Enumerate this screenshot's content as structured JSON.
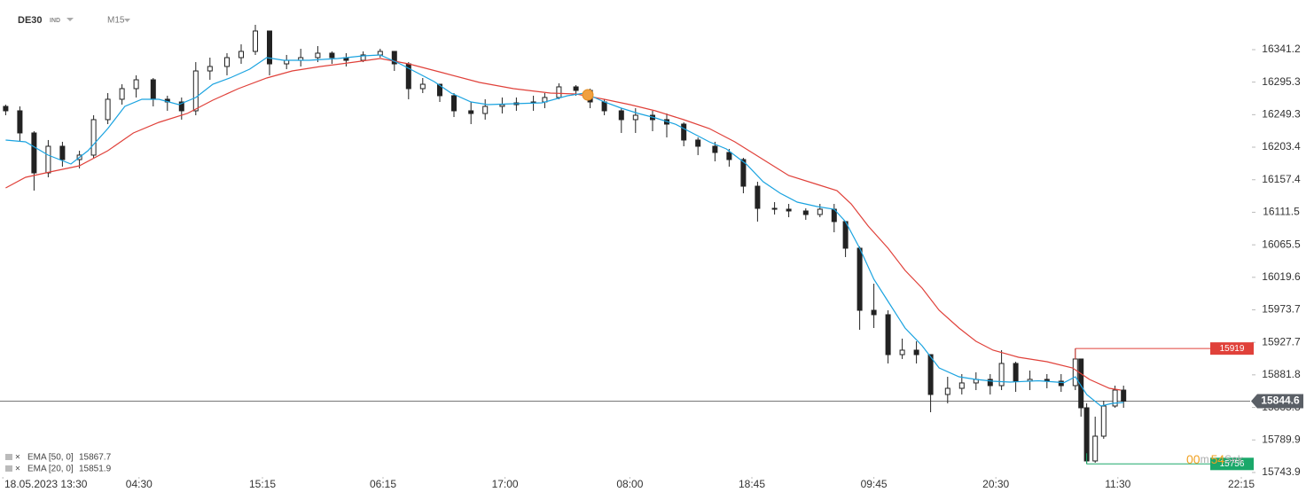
{
  "chart_data": {
    "type": "candlestick",
    "symbol": "DE30",
    "instrument_type": "IND",
    "timeframe": "M15",
    "x": [
      2,
      7,
      12,
      17,
      22,
      28,
      33,
      38,
      43,
      48,
      54,
      59,
      64,
      69,
      74,
      80,
      85,
      90,
      95,
      101,
      106,
      112,
      117,
      122,
      128,
      134,
      139,
      144,
      149,
      155,
      160,
      166,
      171,
      177,
      182,
      188,
      192,
      197,
      203,
      208,
      213,
      219,
      224,
      230,
      235,
      241,
      246,
      252,
      257,
      262,
      267,
      273,
      278,
      284,
      289,
      294,
      298,
      303,
      308,
      313,
      318,
      323,
      328,
      334,
      339,
      344,
      349,
      353,
      358,
      363,
      369,
      374,
      379,
      381,
      383,
      386,
      389,
      393,
      396
    ],
    "open": [
      16261.0,
      16254.8,
      16223.5,
      16167.1,
      16204.7,
      16185.9,
      16192.2,
      16242.3,
      16271.1,
      16286.1,
      16298.6,
      16271.1,
      16267.3,
      16254.8,
      16311.1,
      16317.4,
      16329.9,
      16338.7,
      16367.5,
      16321.1,
      16326.1,
      16329.9,
      16336.2,
      16329.9,
      16326.1,
      16333.7,
      16338.7,
      16321.1,
      16286.1,
      16292.3,
      16276.1,
      16254.8,
      16251.0,
      16261.0,
      16263.5,
      16266.0,
      16267.3,
      16273.6,
      16288.6,
      16283.6,
      16267.3,
      16254.8,
      16242.3,
      16248.5,
      16242.3,
      16236.0,
      16213.5,
      16204.7,
      16195.9,
      16185.9,
      16148.3,
      16117.0,
      16115.8,
      16113.3,
      16108.3,
      16115.8,
      16098.3,
      16060.7,
      15973.0,
      15966.8,
      15910.4,
      15916.7,
      15910.4,
      15854.1,
      15862.8,
      15870.4,
      15875.4,
      15866.6,
      15897.9,
      15872.9,
      15875.4,
      15872.9,
      15866.6,
      15904.2,
      15835.3,
      15760.2,
      15795.2,
      15837.8,
      15860.3
    ],
    "high": [
      16263.5,
      16261.0,
      16226.0,
      16213.5,
      16211.0,
      16198.4,
      16248.5,
      16279.8,
      16292.3,
      16304.9,
      16301.1,
      16276.1,
      16273.6,
      16323.6,
      16329.9,
      16336.2,
      16348.7,
      16376.2,
      16367.5,
      16333.7,
      16342.4,
      16346.2,
      16338.7,
      16336.2,
      16338.7,
      16342.4,
      16338.7,
      16323.6,
      16301.1,
      16292.3,
      16279.8,
      16267.3,
      16271.1,
      16273.6,
      16273.6,
      16276.1,
      16279.8,
      16293.6,
      16291.1,
      16286.1,
      16271.1,
      16258.5,
      16258.5,
      16254.8,
      16251.0,
      16238.5,
      16217.2,
      16211.0,
      16200.9,
      16188.4,
      16154.6,
      16125.8,
      16123.3,
      16117.0,
      16123.3,
      16123.3,
      16098.3,
      16063.2,
      16010.6,
      15973.0,
      15933.0,
      15929.2,
      15910.4,
      15879.1,
      15882.9,
      15885.4,
      15882.9,
      15916.7,
      15900.4,
      15887.9,
      15882.9,
      15882.9,
      15919.0,
      15904.2,
      15841.6,
      15822.8,
      15845.3,
      15866.6,
      15866.6
    ],
    "low": [
      16248.5,
      16211.0,
      16142.1,
      16160.9,
      16175.9,
      16173.4,
      16188.4,
      16236.0,
      16263.5,
      16273.6,
      16261.0,
      16254.8,
      16242.3,
      16248.5,
      16298.6,
      16304.9,
      16321.1,
      16333.7,
      16304.9,
      16313.6,
      16317.4,
      16323.6,
      16321.1,
      16317.4,
      16323.6,
      16329.9,
      16311.1,
      16271.1,
      16279.8,
      16267.3,
      16246.0,
      16236.0,
      16242.3,
      16251.0,
      16254.8,
      16254.8,
      16258.5,
      16271.1,
      16276.1,
      16258.5,
      16248.5,
      16223.5,
      16223.5,
      16226.0,
      16217.2,
      16204.7,
      16192.2,
      16183.4,
      16175.9,
      16138.3,
      16098.3,
      16108.3,
      16104.5,
      16100.8,
      16104.5,
      16083.2,
      16048.2,
      15945.5,
      15948.0,
      15897.9,
      15904.2,
      15897.9,
      15829.0,
      15841.6,
      15854.1,
      15860.3,
      15854.1,
      15860.3,
      15857.8,
      15860.3,
      15862.8,
      15857.8,
      15860.3,
      15822.8,
      15756.0,
      15757.7,
      15791.5,
      15835.3,
      15835.3
    ],
    "close": [
      16254.8,
      16223.5,
      16167.1,
      16204.7,
      16185.9,
      16192.2,
      16242.3,
      16271.1,
      16286.1,
      16298.6,
      16271.1,
      16267.3,
      16254.8,
      16311.1,
      16317.4,
      16329.9,
      16338.7,
      16367.5,
      16321.1,
      16326.1,
      16329.9,
      16336.2,
      16329.9,
      16326.1,
      16333.7,
      16338.7,
      16321.1,
      16286.1,
      16292.3,
      16276.1,
      16254.8,
      16251.0,
      16261.0,
      16263.5,
      16266.0,
      16267.3,
      16273.6,
      16288.6,
      16283.6,
      16267.3,
      16254.8,
      16242.3,
      16248.5,
      16242.3,
      16236.0,
      16213.5,
      16204.7,
      16195.9,
      16185.9,
      16148.3,
      16117.0,
      16115.8,
      16113.3,
      16108.3,
      16115.8,
      16098.3,
      16060.7,
      15973.0,
      15966.8,
      15910.4,
      15916.7,
      15910.4,
      15854.1,
      15862.8,
      15870.4,
      15875.4,
      15866.6,
      15897.9,
      15872.9,
      15875.4,
      15872.9,
      15866.6,
      15904.2,
      15835.3,
      15760.2,
      15795.2,
      15837.8,
      15860.3,
      15844.6
    ],
    "up_color": "#ffffff",
    "down_color": "#222222",
    "xlim": [
      0,
      440
    ],
    "ylim": [
      15735.1,
      16411.3
    ],
    "yticks": [
      16341.2,
      16295.3,
      16249.3,
      16203.4,
      16157.4,
      16111.5,
      16065.5,
      16019.6,
      15973.7,
      15927.7,
      15881.8,
      15835.8,
      15789.9,
      15743.9
    ],
    "xticks": [
      {
        "value": 1,
        "label": "18.05.2023  13:30"
      },
      {
        "value": 49,
        "label": "04:30"
      },
      {
        "value": 92.5,
        "label": "15:15"
      },
      {
        "value": 135,
        "label": "06:15"
      },
      {
        "value": 178,
        "label": "17:00"
      },
      {
        "value": 222,
        "label": "08:00"
      },
      {
        "value": 265,
        "label": "18:45"
      },
      {
        "value": 308,
        "label": "09:45"
      },
      {
        "value": 351,
        "label": "20:30"
      },
      {
        "value": 394,
        "label": "11:30"
      },
      {
        "value": 437.5,
        "label": "22:15"
      }
    ],
    "series": [
      {
        "name": "EMA [50, 0]",
        "legend_value": 15867.7,
        "color": "#e0413a",
        "x": [
          2,
          9,
          19,
          28,
          38,
          47,
          56,
          66,
          75,
          84,
          94,
          103,
          113,
          125,
          134,
          144,
          156,
          169,
          181,
          194,
          203,
          213,
          222,
          231,
          241,
          250,
          259,
          269,
          278,
          288,
          295,
          300,
          306,
          313,
          319,
          325,
          331,
          338,
          344,
          350,
          359,
          369,
          378,
          384,
          391,
          395
        ],
        "values": [
          16145.8,
          16160.9,
          16169.6,
          16177.1,
          16198.4,
          16223.5,
          16238.5,
          16251.0,
          16269.8,
          16286.1,
          16301.1,
          16311.1,
          16317.4,
          16323.6,
          16328.7,
          16321.1,
          16308.6,
          16294.9,
          16286.1,
          16279.8,
          16278.6,
          16271.1,
          16263.5,
          16254.8,
          16242.3,
          16229.7,
          16211.0,
          16185.9,
          16163.4,
          16150.8,
          16142.1,
          16123.3,
          16092.0,
          16060.7,
          16029.4,
          16004.3,
          15973.0,
          15948.0,
          15929.2,
          15916.7,
          15906.7,
          15900.4,
          15891.6,
          15875.4,
          15862.8,
          15860.3
        ]
      },
      {
        "name": "EMA [20, 0]",
        "legend_value": 15851.9,
        "color": "#1aa3e0",
        "x": [
          2,
          9,
          17,
          25,
          31,
          38,
          44,
          50,
          56,
          63,
          69,
          75,
          81,
          88,
          94,
          100,
          109,
          119,
          128,
          134,
          141,
          147,
          153,
          159,
          166,
          172,
          181,
          191,
          200,
          206,
          213,
          219,
          225,
          231,
          238,
          244,
          250,
          256,
          263,
          269,
          275,
          281,
          288,
          294,
          298,
          303,
          308,
          313,
          319,
          325,
          331,
          338,
          344,
          350,
          356,
          366,
          375,
          379,
          383,
          388,
          392,
          396
        ],
        "values": [
          16213.5,
          16211.0,
          16192.2,
          16179.6,
          16198.4,
          16229.7,
          16261.0,
          16271.1,
          16271.1,
          16263.5,
          16273.6,
          16292.3,
          16301.1,
          16313.6,
          16329.9,
          16326.1,
          16326.1,
          16328.7,
          16332.4,
          16333.7,
          16321.1,
          16308.6,
          16296.1,
          16279.8,
          16267.3,
          16263.5,
          16264.8,
          16266.0,
          16276.1,
          16279.8,
          16267.3,
          16258.5,
          16251.0,
          16244.8,
          16236.0,
          16223.5,
          16211.0,
          16200.9,
          16179.6,
          16154.6,
          16138.3,
          16125.8,
          16119.5,
          16115.8,
          16098.3,
          16060.7,
          16016.9,
          15985.6,
          15948.0,
          15922.9,
          15891.6,
          15879.1,
          15875.4,
          15872.9,
          15871.6,
          15873.5,
          15870.9,
          15879.1,
          15854.1,
          15837.8,
          15841.6,
          15842.8
        ]
      }
    ],
    "current_price": 15844.6,
    "high_marker": {
      "x": 379,
      "value": 15919.0,
      "color": "#e0413a"
    },
    "low_marker": {
      "x": 383,
      "value": 15756.0,
      "color": "#1aa86a"
    },
    "countdown": {
      "minutes": "00",
      "minutes_unit": "m",
      "seconds": "54",
      "seconds_unit": "Sek"
    }
  }
}
